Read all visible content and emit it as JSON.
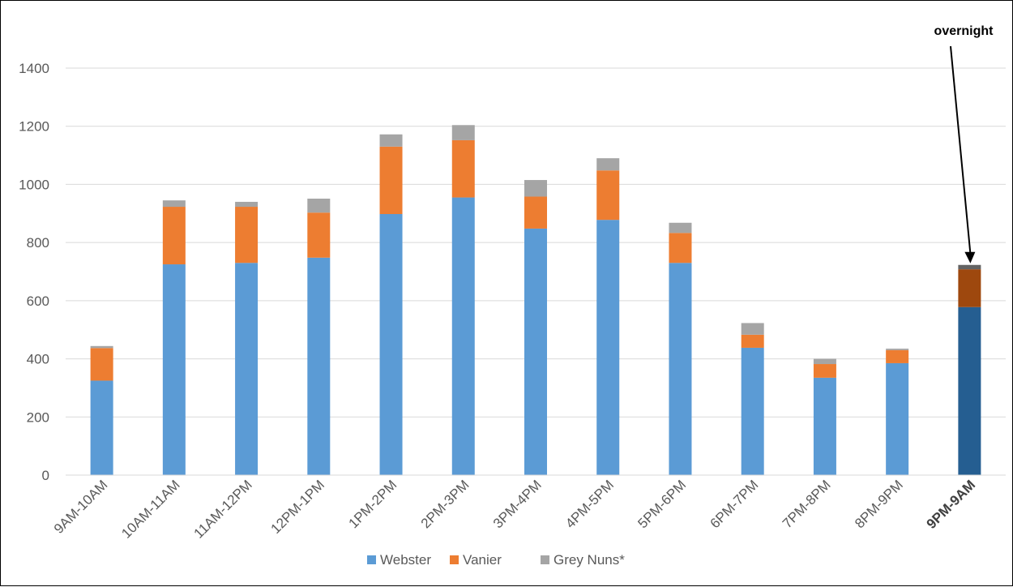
{
  "chart_data": {
    "type": "bar",
    "stacked": true,
    "categories": [
      "9AM-10AM",
      "10AM-11AM",
      "11AM-12PM",
      "12PM-1PM",
      "1PM-2PM",
      "2PM-3PM",
      "3PM-4PM",
      "4PM-5PM",
      "5PM-6PM",
      "6PM-7PM",
      "7PM-8PM",
      "8PM-9PM",
      "9PM-9AM"
    ],
    "series": [
      {
        "name": "Webster",
        "color": "#5b9bd5",
        "values": [
          325,
          725,
          730,
          748,
          898,
          955,
          848,
          878,
          730,
          438,
          335,
          385,
          578
        ]
      },
      {
        "name": "Vanier",
        "color": "#ed7d31",
        "values": [
          112,
          198,
          193,
          155,
          232,
          197,
          110,
          170,
          103,
          45,
          47,
          45,
          130
        ]
      },
      {
        "name": "Grey Nuns*",
        "color": "#a5a5a5",
        "values": [
          7,
          22,
          17,
          48,
          42,
          52,
          57,
          42,
          35,
          40,
          18,
          5,
          15
        ]
      }
    ],
    "highlight": {
      "index": 12,
      "colors": [
        "#255e91",
        "#9e480e",
        "#636363"
      ]
    },
    "yticks": [
      0,
      200,
      400,
      600,
      800,
      1000,
      1200,
      1400
    ],
    "ylim": [
      0,
      1550
    ],
    "grid": true,
    "legend_position": "bottom",
    "annotation": {
      "text": "overnight",
      "target_index": 12
    }
  }
}
